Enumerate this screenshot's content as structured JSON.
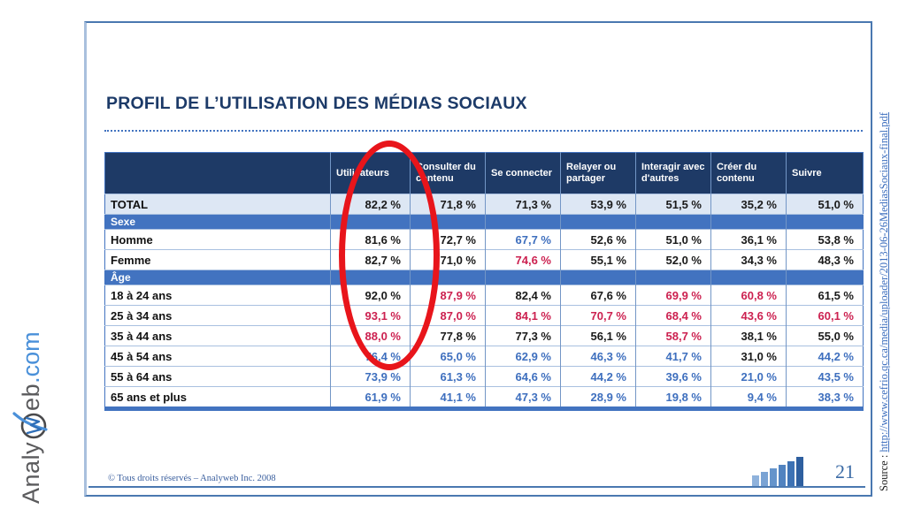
{
  "slide": {
    "title": "PROFIL DE L’UTILISATION DES MÉDIAS SOCIAUX",
    "page_number": "21",
    "footer_copyright": "©  Tous droits réservés – Analyweb Inc. 2008",
    "source_label": "Source : ",
    "source_url": "http://www.cefrio.qc.ca/media/uploader/2013-06-26MediasSociaux-final.pdf",
    "logo": {
      "part1": "Analy",
      "part2": "eb",
      "part3": ".com",
      "icon": "w-swoosh-icon"
    }
  },
  "table": {
    "columns": [
      "Utilisateurs",
      "Consulter du contenu",
      "Se connecter",
      "Relayer ou partager",
      "Interagir avec d'autres",
      "Créer du contenu",
      "Suivre"
    ],
    "rows": [
      {
        "label": "TOTAL",
        "type": "total",
        "values": [
          "82,2 %",
          "71,8 %",
          "71,3 %",
          "53,9 %",
          "51,5 %",
          "35,2 %",
          "51,0 %"
        ],
        "colors": [
          "k",
          "k",
          "k",
          "k",
          "k",
          "k",
          "k"
        ]
      },
      {
        "label": "Sexe",
        "type": "section"
      },
      {
        "label": "Homme",
        "type": "data",
        "values": [
          "81,6 %",
          "72,7 %",
          "67,7 %",
          "52,6 %",
          "51,0 %",
          "36,1 %",
          "53,8 %"
        ],
        "colors": [
          "k",
          "k",
          "b",
          "k",
          "k",
          "k",
          "k"
        ]
      },
      {
        "label": "Femme",
        "type": "data",
        "values": [
          "82,7 %",
          "71,0 %",
          "74,6 %",
          "55,1 %",
          "52,0 %",
          "34,3 %",
          "48,3 %"
        ],
        "colors": [
          "k",
          "k",
          "r",
          "k",
          "k",
          "k",
          "k"
        ]
      },
      {
        "label": "Âge",
        "type": "section"
      },
      {
        "label": "18 à 24 ans",
        "type": "data",
        "values": [
          "92,0 %",
          "87,9 %",
          "82,4 %",
          "67,6 %",
          "69,9 %",
          "60,8 %",
          "61,5 %"
        ],
        "colors": [
          "k",
          "r",
          "k",
          "k",
          "r",
          "r",
          "k"
        ]
      },
      {
        "label": "25 à 34 ans",
        "type": "data",
        "values": [
          "93,1 %",
          "87,0 %",
          "84,1 %",
          "70,7 %",
          "68,4 %",
          "43,6 %",
          "60,1 %"
        ],
        "colors": [
          "r",
          "r",
          "r",
          "r",
          "r",
          "r",
          "r"
        ]
      },
      {
        "label": "35 à 44 ans",
        "type": "data",
        "values": [
          "88,0 %",
          "77,8 %",
          "77,3 %",
          "56,1 %",
          "58,7 %",
          "38,1 %",
          "55,0 %"
        ],
        "colors": [
          "r",
          "k",
          "k",
          "k",
          "r",
          "k",
          "k"
        ]
      },
      {
        "label": "45 à 54 ans",
        "type": "data",
        "values": [
          "76,4 %",
          "65,0 %",
          "62,9 %",
          "46,3 %",
          "41,7 %",
          "31,0 %",
          "44,2 %"
        ],
        "colors": [
          "b",
          "b",
          "b",
          "b",
          "b",
          "k",
          "b"
        ]
      },
      {
        "label": "55 à 64 ans",
        "type": "data",
        "values": [
          "73,9 %",
          "61,3 %",
          "64,6 %",
          "44,2 %",
          "39,6 %",
          "21,0 %",
          "43,5 %"
        ],
        "colors": [
          "b",
          "b",
          "b",
          "b",
          "b",
          "b",
          "b"
        ]
      },
      {
        "label": "65 ans et plus",
        "type": "data",
        "values": [
          "61,9 %",
          "41,1 %",
          "47,3 %",
          "28,9 %",
          "19,8 %",
          "9,4 %",
          "38,3 %"
        ],
        "colors": [
          "b",
          "b",
          "b",
          "b",
          "b",
          "b",
          "b"
        ]
      }
    ]
  },
  "annotation": {
    "shape": "ellipse",
    "circled_column": "Utilisateurs",
    "color": "#e8151b"
  },
  "colors": {
    "header_bg": "#1e3a66",
    "section_bg": "#4273c0",
    "total_row_bg": "#dde7f4",
    "value_red": "#cc2150",
    "value_blue": "#3e6fbe",
    "accent_border": "#4a78b0"
  },
  "bars_icon_heights": [
    12,
    16,
    20,
    24,
    28,
    33
  ],
  "bars_icon_colors": [
    "#8fb2dc",
    "#7aa3d4",
    "#6594cb",
    "#5183c0",
    "#3d72b4",
    "#2e5f9f"
  ]
}
